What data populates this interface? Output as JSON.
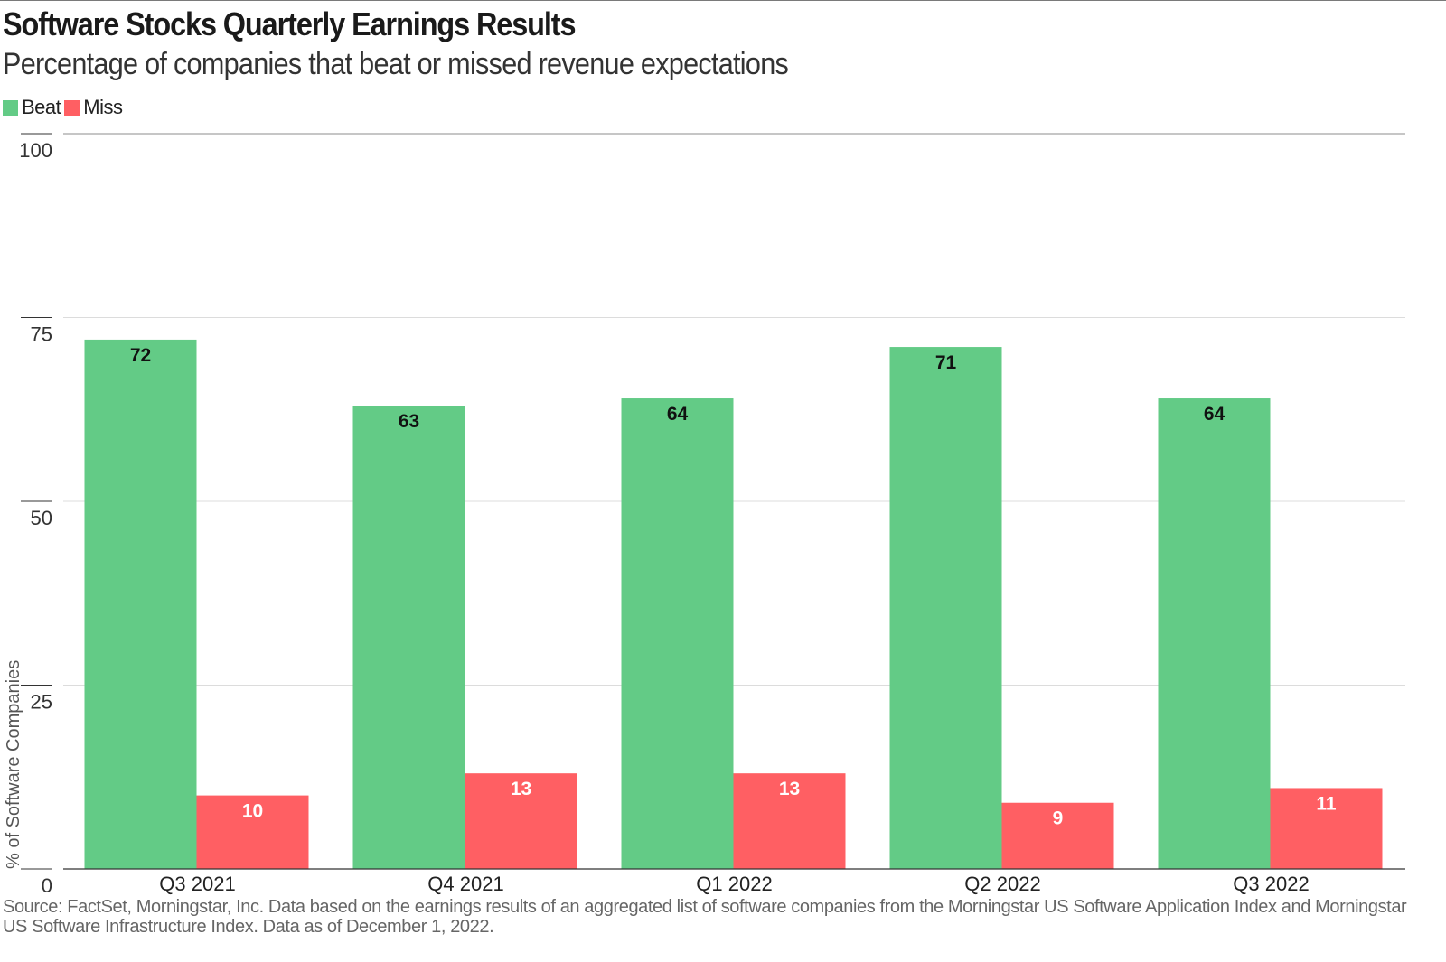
{
  "chart_data": {
    "type": "bar",
    "title": "Software Stocks Quarterly Earnings Results",
    "subtitle": "Percentage of companies that beat or missed revenue expectations",
    "categories": [
      "Q3 2021",
      "Q4 2021",
      "Q1 2022",
      "Q2 2022",
      "Q3 2022"
    ],
    "series": [
      {
        "name": "Beat",
        "color": "#63cb86",
        "values": [
          72,
          63,
          64,
          71,
          64
        ]
      },
      {
        "name": "Miss",
        "color": "#ff5f63",
        "values": [
          10,
          13,
          13,
          9,
          11
        ]
      }
    ],
    "xlabel": "",
    "ylabel": "% of Software Companies",
    "ylim": [
      0,
      100
    ],
    "yticks": [
      0,
      25,
      50,
      75,
      100
    ],
    "grid": true,
    "legend": "top-left",
    "source": "Source: FactSet, Morningstar, Inc. Data based on the earnings results of an aggregated list of software companies from the Morningstar US Software Application Index and Morningstar US Software Infrastructure Index. Data as of December 1, 2022."
  }
}
